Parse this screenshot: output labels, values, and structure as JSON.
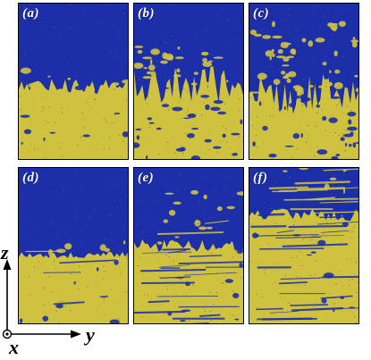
{
  "figure": {
    "panels": [
      {
        "id": "a",
        "label": "(a)"
      },
      {
        "id": "b",
        "label": "(b)"
      },
      {
        "id": "c",
        "label": "(c)"
      },
      {
        "id": "d",
        "label": "(d)"
      },
      {
        "id": "e",
        "label": "(e)"
      },
      {
        "id": "f",
        "label": "(f)"
      }
    ],
    "axes": {
      "z_label": "z",
      "y_label": "y",
      "x_label": "x"
    },
    "colors": {
      "blue_phase": "#1c2ea8",
      "yellow_phase": "#cfc23f"
    }
  }
}
